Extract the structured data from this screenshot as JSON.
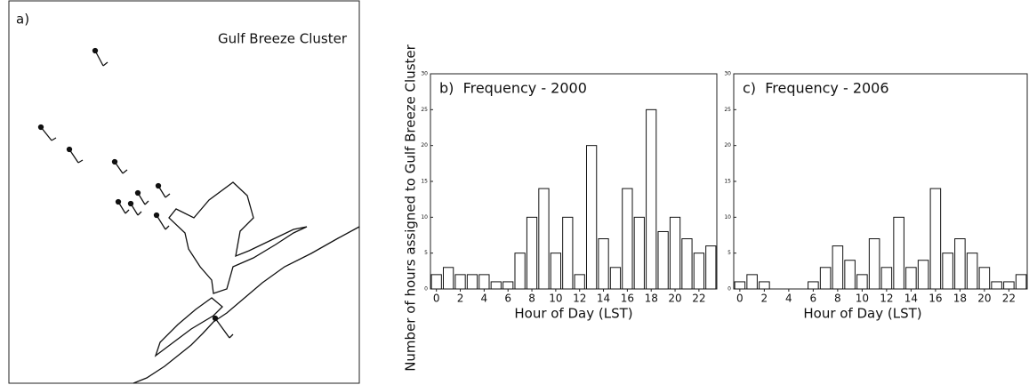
{
  "map": {
    "label": "a)",
    "title": "Gulf Breeze Cluster"
  },
  "chart_data": [
    {
      "type": "bar",
      "title": "b)  Frequency - 2000",
      "xlabel": "Hour of Day (LST)",
      "ylabel": "Number of hours assigned to Gulf Breeze Cluster",
      "x": [
        0,
        1,
        2,
        3,
        4,
        5,
        6,
        7,
        8,
        9,
        10,
        11,
        12,
        13,
        14,
        15,
        16,
        17,
        18,
        19,
        20,
        21,
        22,
        23
      ],
      "values": [
        2,
        3,
        2,
        2,
        2,
        1,
        1,
        5,
        10,
        14,
        5,
        10,
        2,
        20,
        7,
        3,
        14,
        10,
        25,
        8,
        10,
        7,
        5,
        6
      ],
      "color": "#ffffff",
      "xlim": [
        -0.5,
        23.5
      ],
      "xticks": [
        0,
        2,
        4,
        6,
        8,
        10,
        12,
        14,
        16,
        18,
        20,
        22
      ],
      "ylim": [
        0,
        30
      ],
      "yticks": [
        0,
        5,
        10,
        15,
        20,
        25,
        30
      ]
    },
    {
      "type": "bar",
      "title": "c)  Frequency - 2006",
      "xlabel": "Hour of Day (LST)",
      "x": [
        0,
        1,
        2,
        3,
        4,
        5,
        6,
        7,
        8,
        9,
        10,
        11,
        12,
        13,
        14,
        15,
        16,
        17,
        18,
        19,
        20,
        21,
        22,
        23
      ],
      "values": [
        1,
        2,
        1,
        0,
        0,
        0,
        1,
        3,
        6,
        4,
        2,
        7,
        3,
        10,
        3,
        4,
        14,
        5,
        7,
        5,
        3,
        1,
        1,
        2
      ],
      "color": "#ffffff",
      "xlim": [
        -0.5,
        23.5
      ],
      "xticks": [
        0,
        2,
        4,
        6,
        8,
        10,
        12,
        14,
        16,
        18,
        20,
        22
      ],
      "ylim": [
        0,
        30
      ],
      "yticks": [
        0,
        5,
        10,
        15,
        20,
        25,
        30
      ]
    }
  ]
}
